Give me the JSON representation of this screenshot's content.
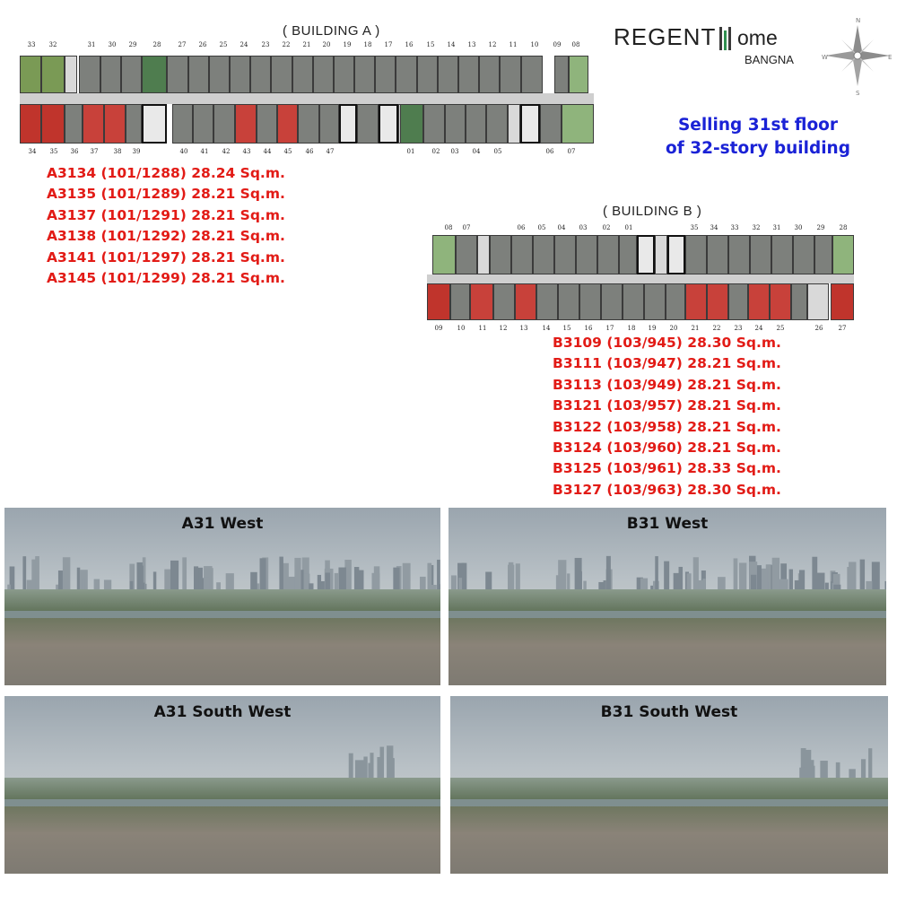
{
  "brand": {
    "name_left": "REGENT",
    "name_right": "ome",
    "location": "BANGNA"
  },
  "compass": {
    "n": "N",
    "e": "E",
    "s": "S",
    "w": "W"
  },
  "selling": {
    "line1": "Selling 31st floor",
    "line2": "of 32-story building"
  },
  "building_a": {
    "title": "( BUILDING A )",
    "top_numbers": [
      "33",
      "32",
      "31",
      "30",
      "29",
      "28",
      "27",
      "26",
      "25",
      "24",
      "23",
      "22",
      "21",
      "20",
      "19",
      "18",
      "17",
      "16",
      "15",
      "14",
      "13",
      "12",
      "11",
      "10",
      "09",
      "08"
    ],
    "bottom_numbers": [
      "34",
      "35",
      "36",
      "37",
      "38",
      "39",
      "40",
      "41",
      "42",
      "43",
      "44",
      "45",
      "46",
      "47",
      "01",
      "02",
      "03",
      "04",
      "05",
      "06",
      "07"
    ],
    "units_for_sale": [
      "A3134 (101/1288) 28.24 Sq.m.",
      "A3135 (101/1289) 28.21 Sq.m.",
      "A3137 (101/1291) 28.21 Sq.m.",
      "A3138 (101/1292) 28.21 Sq.m.",
      "A3141 (101/1297) 28.21 Sq.m.",
      "A3145 (101/1299) 28.21 Sq.m."
    ]
  },
  "building_b": {
    "title": "( BUILDING B )",
    "top_numbers": [
      "08",
      "07",
      "06",
      "05",
      "04",
      "03",
      "02",
      "01",
      "35",
      "34",
      "33",
      "32",
      "31",
      "30",
      "29",
      "28"
    ],
    "bottom_numbers": [
      "09",
      "10",
      "11",
      "12",
      "13",
      "14",
      "15",
      "16",
      "17",
      "18",
      "19",
      "20",
      "21",
      "22",
      "23",
      "24",
      "25",
      "26",
      "27"
    ],
    "units_for_sale": [
      "B3109 (103/945) 28.30 Sq.m.",
      "B3111 (103/947) 28.21 Sq.m.",
      "B3113 (103/949) 28.21 Sq.m.",
      "B3121 (103/957) 28.21 Sq.m.",
      "B3122 (103/958) 28.21 Sq.m.",
      "B3124 (103/960) 28.21 Sq.m.",
      "B3125 (103/961) 28.33 Sq.m.",
      "B3127 (103/963) 28.30 Sq.m."
    ]
  },
  "photos": [
    {
      "caption": "A31 West"
    },
    {
      "caption": "B31 West"
    },
    {
      "caption": "A31 South West"
    },
    {
      "caption": "B31 South West"
    }
  ],
  "colors": {
    "sale_red": "#e21b16",
    "unit_sold_grey": "#7d807c",
    "unit_for_sale": "#c8413a",
    "unit_green": "#8fb47c",
    "selling_blue": "#1a22d6"
  }
}
